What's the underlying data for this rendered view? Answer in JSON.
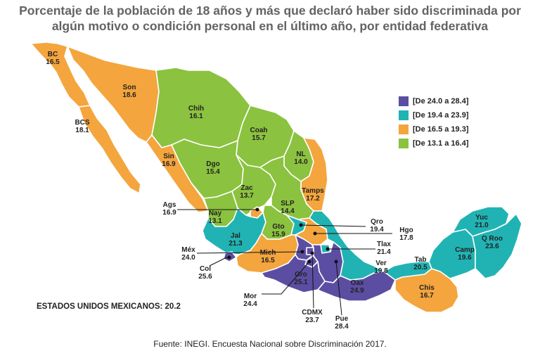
{
  "title_line1": "Porcentaje de la población de 18 años y más que declaró haber sido discriminada por",
  "title_line2": "algún motivo o condición personal en el último año, por entidad federativa",
  "colors": {
    "purple": "#5b4ea2",
    "teal": "#21b3b4",
    "orange": "#f4a53d",
    "green": "#8bc23f"
  },
  "legend": [
    {
      "label": "[De 24.0 a 28.4]",
      "color": "#5b4ea2"
    },
    {
      "label": "[De 19.4 a 23.9]",
      "color": "#21b3b4"
    },
    {
      "label": "[De 16.5 a 19.3]",
      "color": "#f4a53d"
    },
    {
      "label": "[De 13.1 a 16.4]",
      "color": "#8bc23f"
    }
  ],
  "states": {
    "bc": {
      "name": "BC",
      "value": "16.5"
    },
    "bcs": {
      "name": "BCS",
      "value": "18.1"
    },
    "son": {
      "name": "Son",
      "value": "18.6"
    },
    "chih": {
      "name": "Chih",
      "value": "16.1"
    },
    "coah": {
      "name": "Coah",
      "value": "15.7"
    },
    "nl": {
      "name": "NL",
      "value": "14.0"
    },
    "sin": {
      "name": "Sin",
      "value": "16.9"
    },
    "dgo": {
      "name": "Dgo",
      "value": "15.4"
    },
    "tamps": {
      "name": "Tamps",
      "value": "17.2"
    },
    "zac": {
      "name": "Zac",
      "value": "13.7"
    },
    "slp": {
      "name": "SLP",
      "value": "14.4"
    },
    "ags": {
      "name": "Ags",
      "value": "16.9"
    },
    "nay": {
      "name": "Nay",
      "value": "13.1"
    },
    "jal": {
      "name": "Jal",
      "value": "21.3"
    },
    "gto": {
      "name": "Gto",
      "value": "15.9"
    },
    "qro": {
      "name": "Qro",
      "value": "19.4"
    },
    "hgo": {
      "name": "Hgo",
      "value": "17.8"
    },
    "mex": {
      "name": "Méx",
      "value": "24.0"
    },
    "mich": {
      "name": "Mich",
      "value": "16.5"
    },
    "tlax": {
      "name": "Tlax",
      "value": "21.4"
    },
    "col": {
      "name": "Col",
      "value": "25.6"
    },
    "gro": {
      "name": "Gro",
      "value": "25.1"
    },
    "oax": {
      "name": "Oax",
      "value": "24.9"
    },
    "ver": {
      "name": "Ver",
      "value": "19.8"
    },
    "tab": {
      "name": "Tab",
      "value": "20.5"
    },
    "camp": {
      "name": "Camp",
      "value": "19.6"
    },
    "yuc": {
      "name": "Yuc",
      "value": "21.0"
    },
    "qroo": {
      "name": "Q Roo",
      "value": "23.6"
    },
    "chis": {
      "name": "Chis",
      "value": "16.7"
    },
    "mor": {
      "name": "Mor",
      "value": "24.4"
    },
    "cdmx": {
      "name": "CDMX",
      "value": "23.7"
    },
    "pue": {
      "name": "Pue",
      "value": "28.4"
    }
  },
  "national": "ESTADOS UNIDOS MEXICANOS: 20.2",
  "source": "Fuente: INEGI. Encuesta Nacional sobre Discriminación 2017."
}
